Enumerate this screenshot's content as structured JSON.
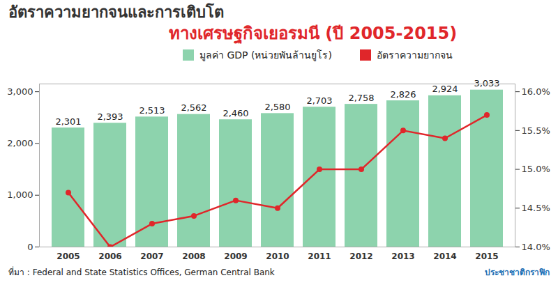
{
  "chart_data": {
    "type": "bar",
    "title": "อัตราความยากจนและการเติบโต",
    "subtitle": "ทางเศรษฐกิจเยอรมนี (ปี 2005-2015)",
    "caption": "ที่มา : Federal and State Statistics Offices, German Central Bank",
    "annotations": [
      "ประชาชาติกราฟิก"
    ],
    "categories": [
      "2005",
      "2006",
      "2007",
      "2008",
      "2009",
      "2010",
      "2011",
      "2012",
      "2013",
      "2014",
      "2015"
    ],
    "series": [
      {
        "name": "มูลค่า GDP (หน่วยพันล้านยูโร)",
        "type": "bar",
        "color": "#8dd3ad",
        "values": [
          2301,
          2393,
          2513,
          2562,
          2460,
          2580,
          2703,
          2758,
          2826,
          2924,
          3033
        ],
        "value_labels": [
          "2,301",
          "2,393",
          "2,513",
          "2,562",
          "2,460",
          "2,580",
          "2,703",
          "2,758",
          "2,826",
          "2,924",
          "3,033"
        ]
      },
      {
        "name": "อัตราความยากจน",
        "type": "line",
        "axis": "y2",
        "color": "#e0262a",
        "marker": "circle",
        "values": [
          14.7,
          14.0,
          14.3,
          14.4,
          14.6,
          14.5,
          15.0,
          15.0,
          15.5,
          15.4,
          15.7
        ]
      }
    ],
    "ylim": [
      0,
      3150
    ],
    "yticks": [
      0,
      {
        "value": 1000,
        "label": "1,000"
      },
      {
        "value": 2000,
        "label": "2,000"
      },
      {
        "value": 3000,
        "label": "3,000"
      }
    ],
    "y2lim": [
      14,
      16.1
    ],
    "y2ticks": [
      {
        "value": 14,
        "label": "14.0%"
      },
      {
        "value": 14.5,
        "label": "14.5%"
      },
      {
        "value": 15,
        "label": "15.0%"
      },
      {
        "value": 15.5,
        "label": "15.5%"
      },
      {
        "value": 16,
        "label": "16.0%"
      }
    ],
    "data_labels": true,
    "legend": "top",
    "grid": false
  }
}
